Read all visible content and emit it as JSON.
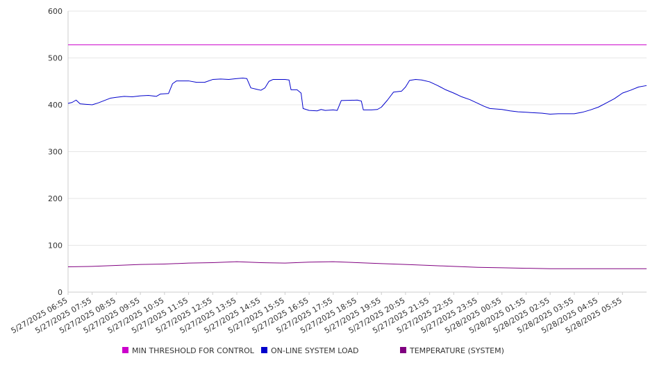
{
  "chart_data": {
    "type": "line",
    "title": "",
    "xlabel": "",
    "ylabel": "",
    "ylim": [
      0,
      600
    ],
    "yticks": [
      0,
      100,
      200,
      300,
      400,
      500,
      600
    ],
    "grid": true,
    "legend_position": "bottom",
    "x_tick_labels": [
      "5/27/2025 06:55",
      "5/27/2025 07:55",
      "5/27/2025 08:55",
      "5/27/2025 09:55",
      "5/27/2025 10:55",
      "5/27/2025 11:55",
      "5/27/2025 12:55",
      "5/27/2025 13:55",
      "5/27/2025 14:55",
      "5/27/2025 15:55",
      "5/27/2025 16:55",
      "5/27/2025 17:55",
      "5/27/2025 18:55",
      "5/27/2025 19:55",
      "5/27/2025 20:55",
      "5/27/2025 21:55",
      "5/27/2025 22:55",
      "5/27/2025 23:55",
      "5/28/2025 00:55",
      "5/28/2025 01:55",
      "5/28/2025 02:55",
      "5/28/2025 03:55",
      "5/28/2025 04:55",
      "5/28/2025 05:55"
    ],
    "series": [
      {
        "name": "MIN THRESHOLD FOR CONTROL",
        "color": "#cc00cc",
        "points": [
          [
            "5/27/2025 06:55",
            528
          ],
          [
            "5/28/2025 06:55",
            528
          ]
        ]
      },
      {
        "name": "ON-LINE SYSTEM LOAD",
        "color": "#0000cc",
        "points": [
          [
            "5/27/2025 06:55",
            403
          ],
          [
            "5/27/2025 07:05",
            405
          ],
          [
            "5/27/2025 07:15",
            410
          ],
          [
            "5/27/2025 07:25",
            402
          ],
          [
            "5/27/2025 07:40",
            401
          ],
          [
            "5/27/2025 07:55",
            400
          ],
          [
            "5/27/2025 08:10",
            404
          ],
          [
            "5/27/2025 08:25",
            409
          ],
          [
            "5/27/2025 08:40",
            414
          ],
          [
            "5/27/2025 08:55",
            416
          ],
          [
            "5/27/2025 09:15",
            418
          ],
          [
            "5/27/2025 09:35",
            417
          ],
          [
            "5/27/2025 09:55",
            419
          ],
          [
            "5/27/2025 10:15",
            420
          ],
          [
            "5/27/2025 10:35",
            418
          ],
          [
            "5/27/2025 10:45",
            423
          ],
          [
            "5/27/2025 11:05",
            424
          ],
          [
            "5/27/2025 11:15",
            445
          ],
          [
            "5/27/2025 11:25",
            451
          ],
          [
            "5/27/2025 11:55",
            451
          ],
          [
            "5/27/2025 12:15",
            448
          ],
          [
            "5/27/2025 12:35",
            448
          ],
          [
            "5/27/2025 12:55",
            454
          ],
          [
            "5/27/2025 13:15",
            455
          ],
          [
            "5/27/2025 13:35",
            454
          ],
          [
            "5/27/2025 13:55",
            456
          ],
          [
            "5/27/2025 14:10",
            457
          ],
          [
            "5/27/2025 14:20",
            456
          ],
          [
            "5/27/2025 14:30",
            436
          ],
          [
            "5/27/2025 14:45",
            433
          ],
          [
            "5/27/2025 14:55",
            431
          ],
          [
            "5/27/2025 15:05",
            436
          ],
          [
            "5/27/2025 15:15",
            450
          ],
          [
            "5/27/2025 15:25",
            454
          ],
          [
            "5/27/2025 15:55",
            454
          ],
          [
            "5/27/2025 16:05",
            453
          ],
          [
            "5/27/2025 16:10",
            432
          ],
          [
            "5/27/2025 16:25",
            432
          ],
          [
            "5/27/2025 16:35",
            425
          ],
          [
            "5/27/2025 16:40",
            392
          ],
          [
            "5/27/2025 16:55",
            388
          ],
          [
            "5/27/2025 17:15",
            387
          ],
          [
            "5/27/2025 17:25",
            390
          ],
          [
            "5/27/2025 17:35",
            388
          ],
          [
            "5/27/2025 17:55",
            389
          ],
          [
            "5/27/2025 18:05",
            388
          ],
          [
            "5/27/2025 18:15",
            409
          ],
          [
            "5/27/2025 18:55",
            410
          ],
          [
            "5/27/2025 19:05",
            408
          ],
          [
            "5/27/2025 19:10",
            389
          ],
          [
            "5/27/2025 19:30",
            389
          ],
          [
            "5/27/2025 19:45",
            390
          ],
          [
            "5/27/2025 19:55",
            395
          ],
          [
            "5/27/2025 20:10",
            410
          ],
          [
            "5/27/2025 20:25",
            427
          ],
          [
            "5/27/2025 20:45",
            429
          ],
          [
            "5/27/2025 20:55",
            438
          ],
          [
            "5/27/2025 21:05",
            452
          ],
          [
            "5/27/2025 21:20",
            454
          ],
          [
            "5/27/2025 21:35",
            453
          ],
          [
            "5/27/2025 21:55",
            449
          ],
          [
            "5/27/2025 22:15",
            441
          ],
          [
            "5/27/2025 22:35",
            432
          ],
          [
            "5/27/2025 22:55",
            425
          ],
          [
            "5/27/2025 23:15",
            417
          ],
          [
            "5/27/2025 23:35",
            411
          ],
          [
            "5/27/2025 23:55",
            403
          ],
          [
            "5/28/2025 00:10",
            397
          ],
          [
            "5/28/2025 00:25",
            392
          ],
          [
            "5/28/2025 00:55",
            390
          ],
          [
            "5/28/2025 01:15",
            387
          ],
          [
            "5/28/2025 01:35",
            385
          ],
          [
            "5/28/2025 01:55",
            384
          ],
          [
            "5/28/2025 02:15",
            383
          ],
          [
            "5/28/2025 02:35",
            382
          ],
          [
            "5/28/2025 02:55",
            380
          ],
          [
            "5/28/2025 03:15",
            381
          ],
          [
            "5/28/2025 03:35",
            381
          ],
          [
            "5/28/2025 03:55",
            381
          ],
          [
            "5/28/2025 04:15",
            384
          ],
          [
            "5/28/2025 04:35",
            389
          ],
          [
            "5/28/2025 04:55",
            395
          ],
          [
            "5/28/2025 05:15",
            404
          ],
          [
            "5/28/2025 05:35",
            413
          ],
          [
            "5/28/2025 05:55",
            425
          ],
          [
            "5/28/2025 06:15",
            431
          ],
          [
            "5/28/2025 06:35",
            438
          ],
          [
            "5/28/2025 06:55",
            441
          ]
        ]
      },
      {
        "name": "TEMPERATURE (SYSTEM)",
        "color": "#800080",
        "points": [
          [
            "5/27/2025 06:55",
            54
          ],
          [
            "5/27/2025 07:55",
            55
          ],
          [
            "5/27/2025 08:55",
            57
          ],
          [
            "5/27/2025 09:55",
            59
          ],
          [
            "5/27/2025 10:55",
            60
          ],
          [
            "5/27/2025 11:55",
            62
          ],
          [
            "5/27/2025 12:55",
            63
          ],
          [
            "5/27/2025 13:55",
            65
          ],
          [
            "5/27/2025 14:55",
            63
          ],
          [
            "5/27/2025 15:55",
            62
          ],
          [
            "5/27/2025 16:55",
            64
          ],
          [
            "5/27/2025 17:55",
            65
          ],
          [
            "5/27/2025 18:55",
            63
          ],
          [
            "5/27/2025 19:55",
            61
          ],
          [
            "5/27/2025 20:55",
            59
          ],
          [
            "5/27/2025 21:55",
            57
          ],
          [
            "5/27/2025 22:55",
            55
          ],
          [
            "5/27/2025 23:55",
            53
          ],
          [
            "5/28/2025 00:55",
            52
          ],
          [
            "5/28/2025 01:55",
            51
          ],
          [
            "5/28/2025 02:55",
            50
          ],
          [
            "5/28/2025 03:55",
            50
          ],
          [
            "5/28/2025 04:55",
            50
          ],
          [
            "5/28/2025 05:55",
            50
          ],
          [
            "5/28/2025 06:55",
            50
          ]
        ]
      }
    ]
  }
}
